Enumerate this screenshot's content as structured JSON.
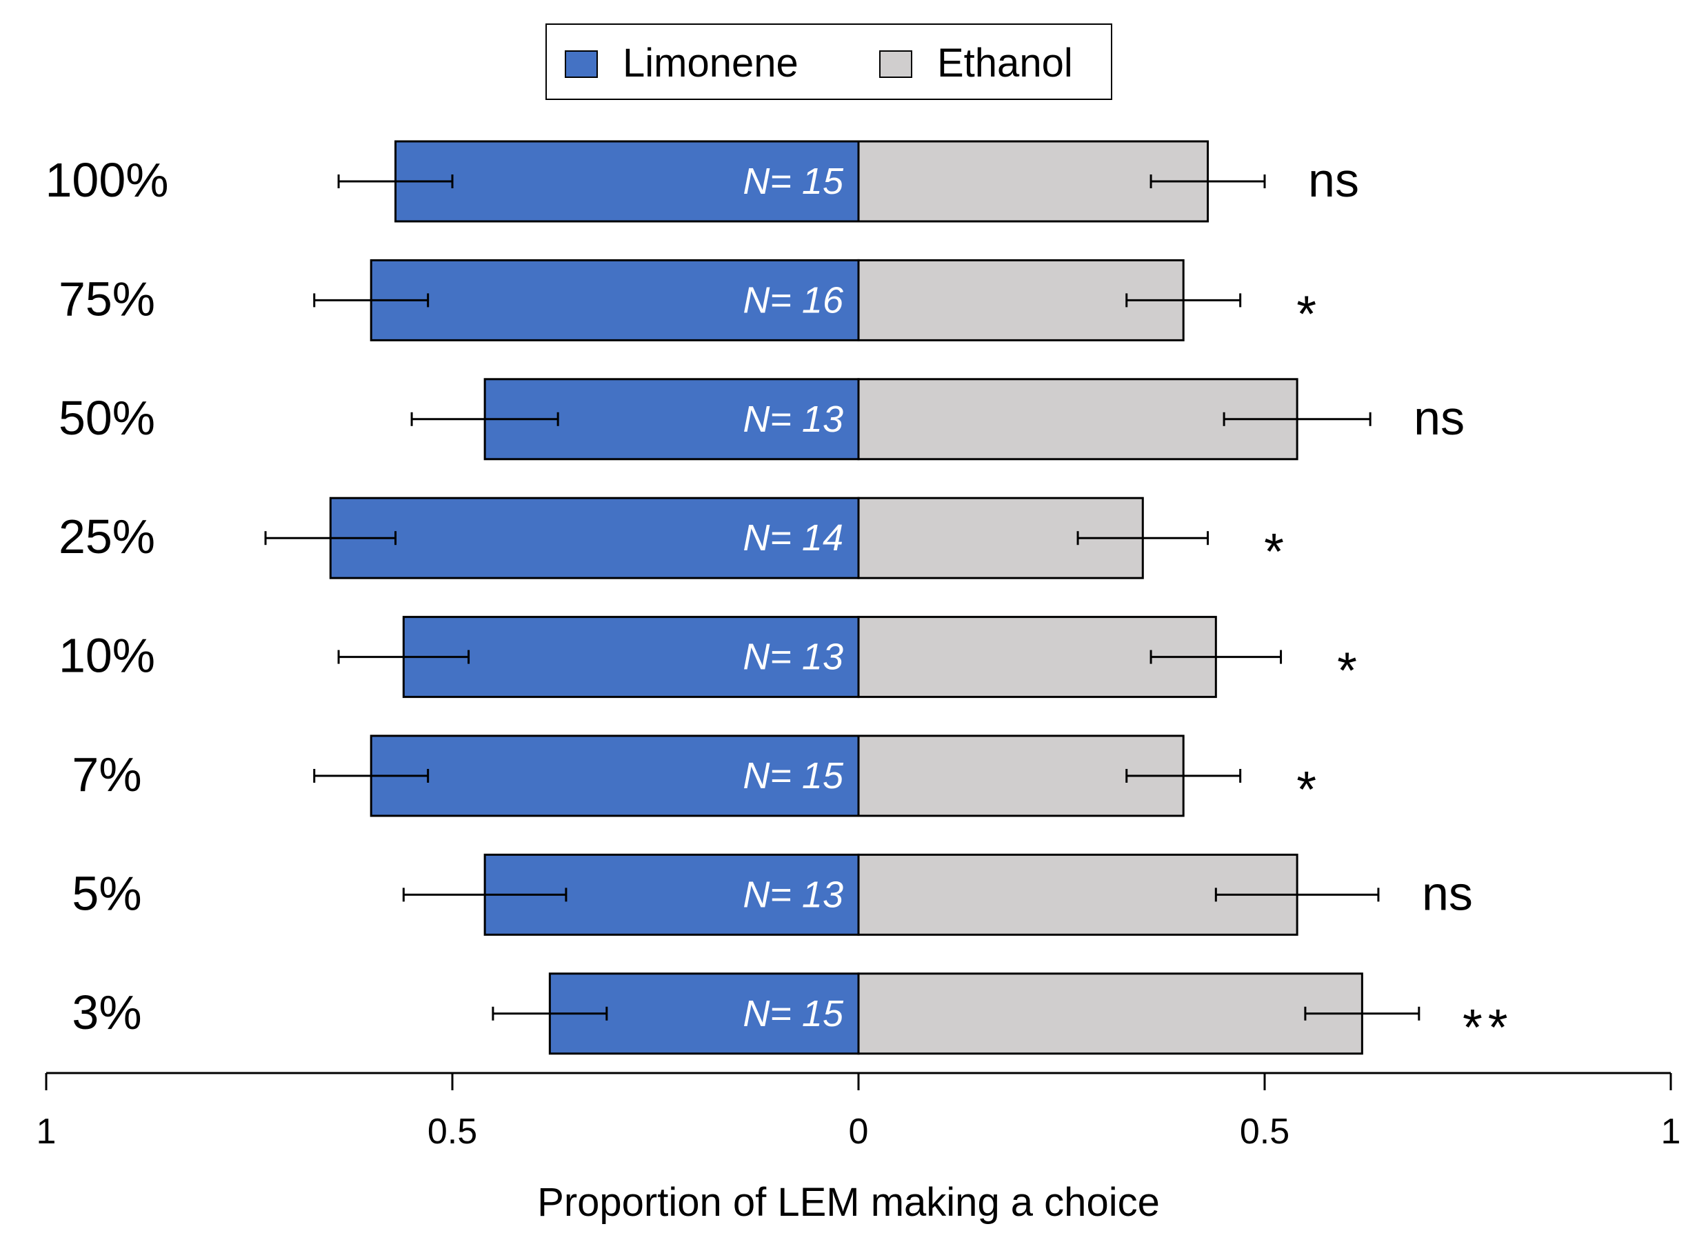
{
  "chart_data": {
    "type": "bar",
    "orientation": "horizontal",
    "stacked": "diverging",
    "xlabel": "Proportion of LEM making a choice",
    "x_ticks": [
      {
        "value": -1,
        "label": "1"
      },
      {
        "value": -0.5,
        "label": "0.5"
      },
      {
        "value": 0,
        "label": "0"
      },
      {
        "value": 0.5,
        "label": "0.5"
      },
      {
        "value": 1,
        "label": "1"
      }
    ],
    "xlim": [
      -1,
      1
    ],
    "grid": false,
    "legend": {
      "position": "top-center",
      "entries": [
        {
          "name": "Limonene",
          "color": "#4472C4"
        },
        {
          "name": "Ethanol",
          "color": "#D0CECE"
        }
      ]
    },
    "categories": [
      "100%",
      "75%",
      "50%",
      "25%",
      "10%",
      "7%",
      "5%",
      "3%"
    ],
    "series": [
      {
        "name": "Limonene",
        "side": "left",
        "color": "#4472C4",
        "values": [
          0.57,
          0.6,
          0.46,
          0.65,
          0.56,
          0.6,
          0.46,
          0.38
        ],
        "error": [
          0.07,
          0.07,
          0.09,
          0.08,
          0.08,
          0.07,
          0.1,
          0.07
        ]
      },
      {
        "name": "Ethanol",
        "side": "right",
        "color": "#D0CECE",
        "values": [
          0.43,
          0.4,
          0.54,
          0.35,
          0.44,
          0.4,
          0.54,
          0.62
        ],
        "error": [
          0.07,
          0.07,
          0.09,
          0.08,
          0.08,
          0.07,
          0.1,
          0.07
        ]
      }
    ],
    "sample_sizes": [
      "N= 15",
      "N= 16",
      "N= 13",
      "N= 14",
      "N= 13",
      "N= 15",
      "N= 13",
      "N= 15"
    ],
    "significance": [
      "ns",
      "*",
      "ns",
      "*",
      "*",
      "*",
      "ns",
      "**"
    ]
  }
}
